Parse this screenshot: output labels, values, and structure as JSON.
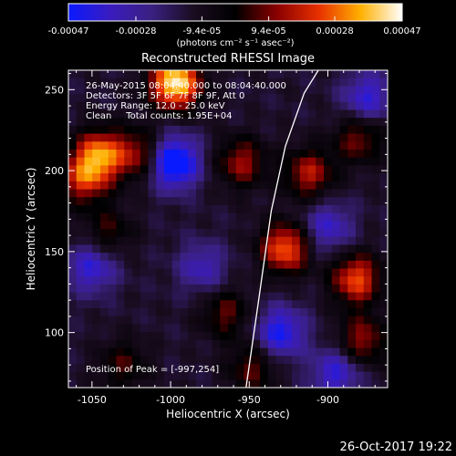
{
  "chart_data": {
    "type": "heatmap",
    "title": "Reconstructed RHESSI Image",
    "xlabel": "Heliocentric X (arcsec)",
    "ylabel": "Heliocentric Y (arcsec)",
    "xlim": [
      -1065,
      -862
    ],
    "ylim": [
      66,
      262
    ],
    "x_ticks": [
      "-1050",
      "-1000",
      "-950",
      "-900"
    ],
    "x_tick_values": [
      -1050,
      -1000,
      -950,
      -900
    ],
    "y_ticks": [
      "100",
      "150",
      "200",
      "250"
    ],
    "y_tick_values": [
      100,
      150,
      200,
      250
    ],
    "colorbar": {
      "ticks": [
        "-0.00047",
        "-0.00028",
        "-9.4e-05",
        "9.4e-05",
        "0.00028",
        "0.00047"
      ],
      "tick_values": [
        -0.00047,
        -0.00028,
        -9.4e-05,
        9.4e-05,
        0.00028,
        0.00047
      ],
      "range": [
        -0.00047,
        0.00047
      ],
      "units": "(photons cm⁻² s⁻¹ asec⁻²)",
      "colormap": [
        "#0a1aff",
        "#3a1cbf",
        "#3a2080",
        "#1a0c20",
        "#000000",
        "#8a0000",
        "#e83000",
        "#ffb000",
        "#ffffff"
      ]
    },
    "info_lines": [
      "26-May-2015 08:04:40.000 to 08:04:40.000",
      "Detectors: 3F 5F 6F 7F 8F 9F, Att 0",
      "Energy Range: 12.0 - 25.0 keV",
      "Clean     Total counts: 1.95E+04"
    ],
    "peak_label": "Position of Peak = [-997,254]",
    "peak": [
      -997,
      254
    ],
    "limb_arc": [
      [
        -952,
        66
      ],
      [
        -944,
        120
      ],
      [
        -936,
        175
      ],
      [
        -927,
        215
      ],
      [
        -915,
        248
      ],
      [
        -906,
        262
      ]
    ],
    "sources": [
      {
        "x": -997,
        "y": 254,
        "intensity": 1.0
      },
      {
        "x": -1045,
        "y": 210,
        "intensity": 0.7
      },
      {
        "x": -1055,
        "y": 195,
        "intensity": 0.55
      },
      {
        "x": -1020,
        "y": 210,
        "intensity": 0.45
      },
      {
        "x": -955,
        "y": 205,
        "intensity": 0.45
      },
      {
        "x": -927,
        "y": 152,
        "intensity": 0.7
      },
      {
        "x": -882,
        "y": 133,
        "intensity": 0.65
      },
      {
        "x": -912,
        "y": 198,
        "intensity": 0.5
      },
      {
        "x": -878,
        "y": 95,
        "intensity": 0.45
      },
      {
        "x": -965,
        "y": 112,
        "intensity": 0.35
      },
      {
        "x": -1040,
        "y": 162,
        "intensity": 0.3
      },
      {
        "x": -948,
        "y": 78,
        "intensity": 0.35
      },
      {
        "x": -880,
        "y": 220,
        "intensity": 0.4
      },
      {
        "x": -1030,
        "y": 80,
        "intensity": 0.3
      },
      {
        "x": -998,
        "y": 205,
        "intensity": -0.8
      },
      {
        "x": -930,
        "y": 100,
        "intensity": -0.55
      },
      {
        "x": -1050,
        "y": 140,
        "intensity": -0.45
      },
      {
        "x": -895,
        "y": 75,
        "intensity": -0.45
      },
      {
        "x": -875,
        "y": 245,
        "intensity": -0.45
      },
      {
        "x": -980,
        "y": 140,
        "intensity": -0.35
      },
      {
        "x": -900,
        "y": 165,
        "intensity": -0.4
      }
    ]
  },
  "footer": {
    "timestamp": "26-Oct-2017 19:22"
  }
}
